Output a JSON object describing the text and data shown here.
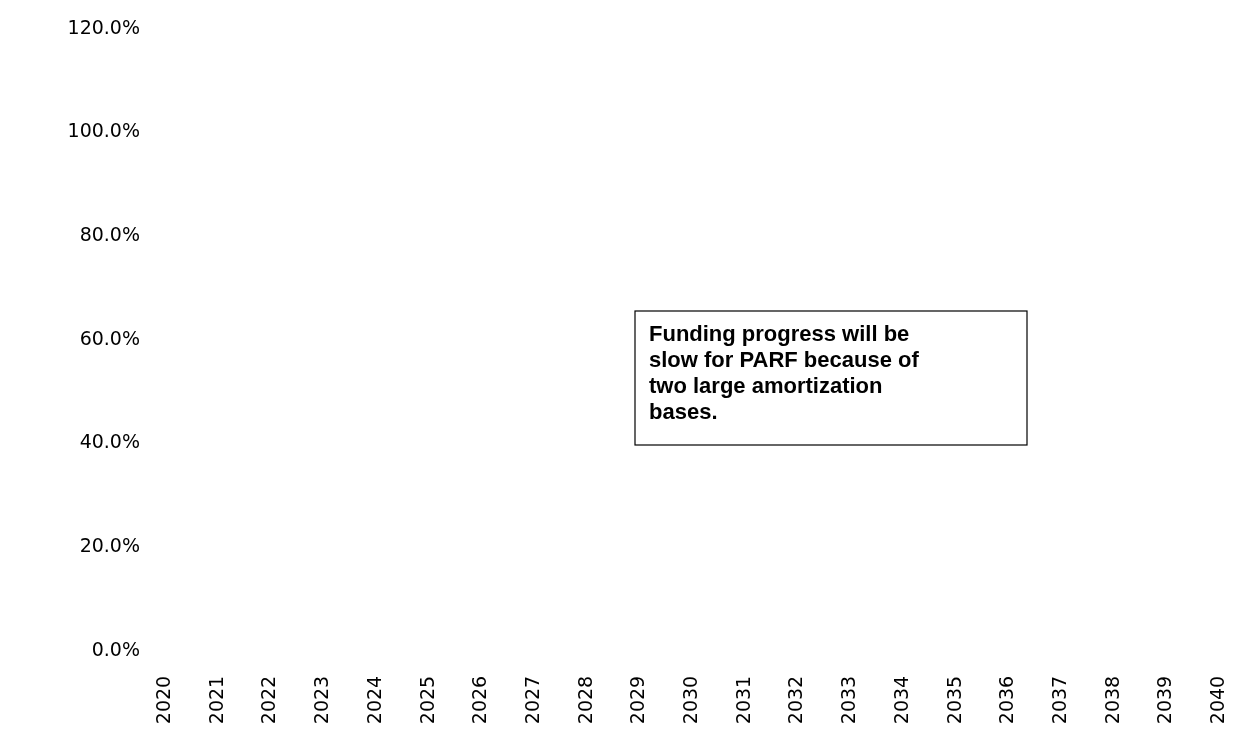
{
  "chart_data": {
    "type": "line",
    "categories": [
      "2020",
      "2021",
      "2022",
      "2023",
      "2024",
      "2025",
      "2026",
      "2027",
      "2028",
      "2029",
      "2030",
      "2031",
      "2032",
      "2033",
      "2034",
      "2035",
      "2036",
      "2037",
      "2038",
      "2039",
      "2040"
    ],
    "values": [
      null,
      null,
      null,
      null,
      null,
      null,
      null,
      null,
      null,
      null,
      null,
      null,
      null,
      null,
      null,
      null,
      null,
      null,
      null,
      null,
      null
    ],
    "ylim": [
      0,
      120
    ],
    "yticks": [
      {
        "value": 0,
        "label": "0.0%"
      },
      {
        "value": 20,
        "label": "20.0%"
      },
      {
        "value": 40,
        "label": "40.0%"
      },
      {
        "value": 60,
        "label": "60.0%"
      },
      {
        "value": 80,
        "label": "80.0%"
      },
      {
        "value": 100,
        "label": "100.0%"
      },
      {
        "value": 120,
        "label": "120.0%"
      }
    ],
    "annotations": [
      "Funding progress will be slow for PARF because of two large amortization bases."
    ]
  }
}
